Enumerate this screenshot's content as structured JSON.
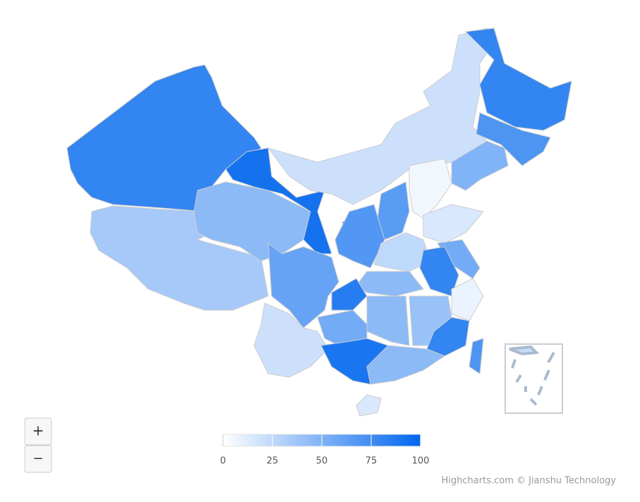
{
  "chart_data": {
    "type": "map",
    "values": [
      80,
      35,
      45,
      92,
      20,
      80,
      70,
      50,
      50,
      5,
      65,
      90,
      68,
      15,
      25,
      55,
      80,
      8,
      45,
      85,
      60,
      20,
      55,
      45,
      40,
      80,
      45,
      90,
      15,
      70
    ],
    "colorAxis": {
      "min": 0,
      "max": 100,
      "ticks": [
        0,
        25,
        50,
        75,
        100
      ],
      "minColor": "#ffffff",
      "maxColor": "#0066ee"
    },
    "zoom_in": "+",
    "zoom_out": "−",
    "credits": "Highcharts.com © Jianshu Technology"
  }
}
